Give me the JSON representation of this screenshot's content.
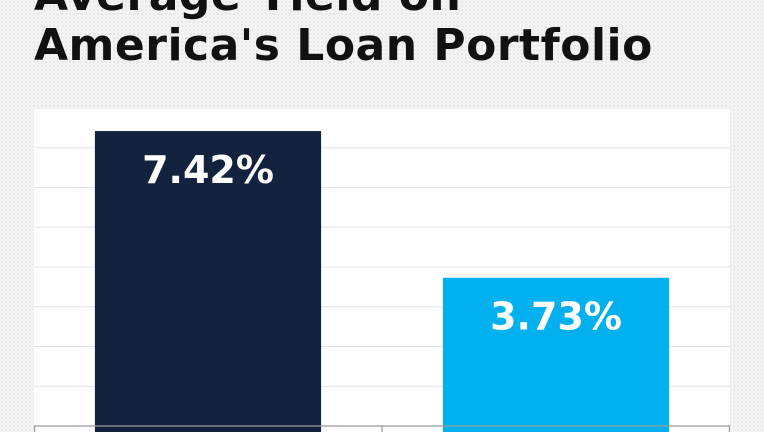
{
  "chart_data": {
    "type": "bar",
    "title_line1": "Average Yield on",
    "title_line2": "America's Loan Portfolio",
    "categories": [
      "",
      ""
    ],
    "values": [
      7.42,
      3.73
    ],
    "data_labels": [
      "7.42%",
      "3.73%"
    ],
    "bar_colors": [
      "#13233f",
      "#00b0ef"
    ],
    "ylim": [
      0,
      8
    ],
    "grid": true,
    "legend": "none"
  }
}
